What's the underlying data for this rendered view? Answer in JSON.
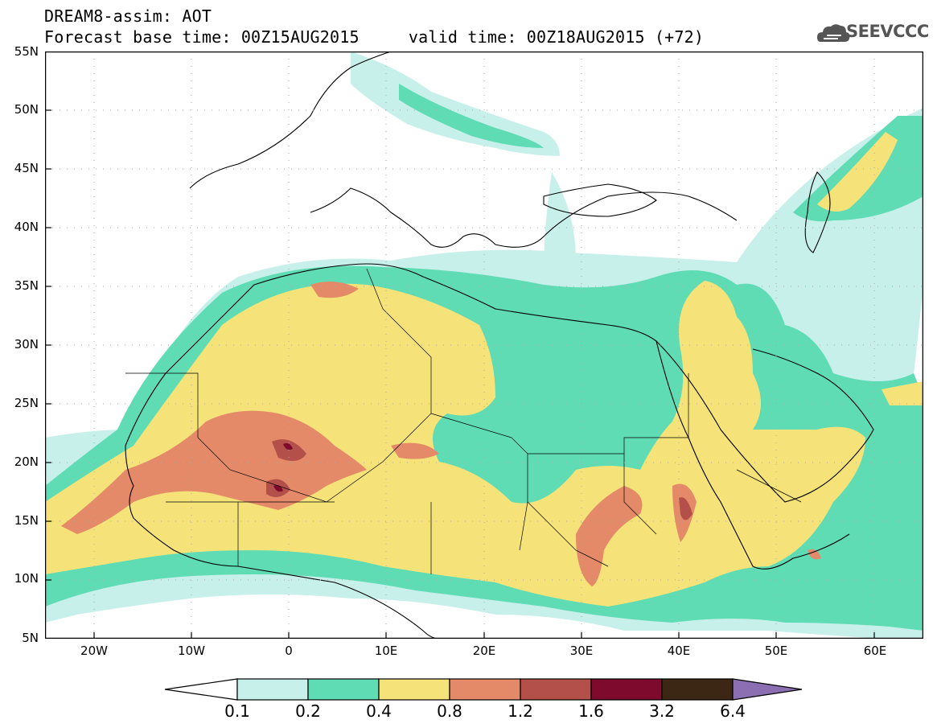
{
  "header": {
    "title_line1": "DREAM8-assim: AOT",
    "title_line2": "Forecast base time: 00Z15AUG2015     valid time: 00Z18AUG2015 (+72)",
    "logo_text": "SEEVCCC"
  },
  "map": {
    "lat_labels": [
      "55N",
      "50N",
      "45N",
      "40N",
      "35N",
      "30N",
      "25N",
      "20N",
      "15N",
      "10N",
      "5N"
    ],
    "lon_labels": [
      "20W",
      "10W",
      "0",
      "10E",
      "20E",
      "30E",
      "40E",
      "50E",
      "60E"
    ],
    "colors": {
      "0.1-0.2": "#c8f0ea",
      "0.2-0.4": "#5fdcb4",
      "0.4-0.8": "#f5e37a",
      "0.8-1.2": "#e48a68",
      "1.2-1.6": "#b4504a",
      "1.6-3.2": "#7e0a2e",
      "3.2-6.4": "#3c2614",
      "over": "#8b6fb2"
    }
  },
  "colorbar": {
    "labels": [
      "0.1",
      "0.2",
      "0.4",
      "0.8",
      "1.2",
      "1.6",
      "3.2",
      "6.4"
    ],
    "colors": [
      "#c8f0ea",
      "#5fdcb4",
      "#f5e37a",
      "#e48a68",
      "#b4504a",
      "#7e0a2e",
      "#3c2614"
    ],
    "under_color": "#ffffff",
    "over_color": "#8b6fb2"
  }
}
